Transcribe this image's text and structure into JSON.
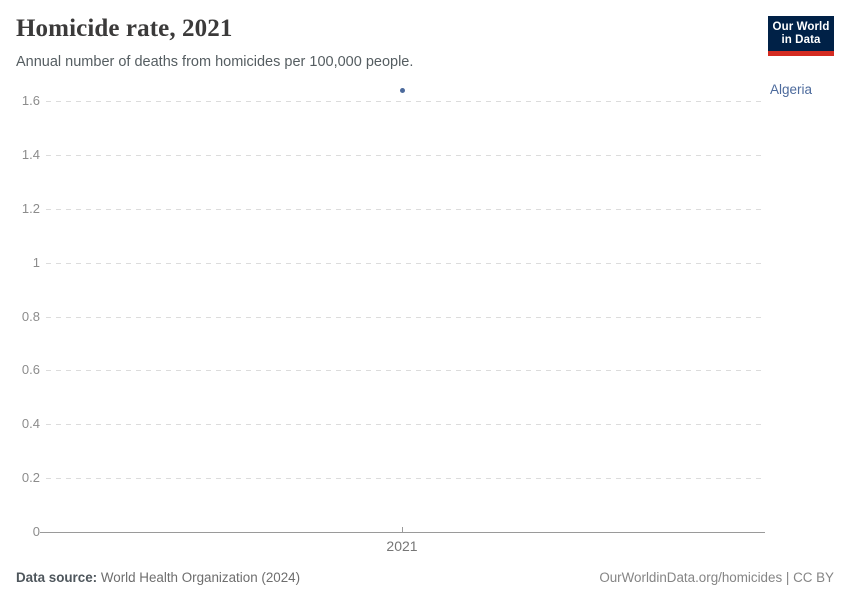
{
  "header": {
    "title": "Homicide rate, 2021",
    "subtitle": "Annual number of deaths from homicides per 100,000 people.",
    "logo": {
      "line1": "Our World",
      "line2": "in Data"
    }
  },
  "chart_data": {
    "type": "scatter",
    "title": "Homicide rate, 2021",
    "subtitle": "Annual number of deaths from homicides per 100,000 people.",
    "series": [
      {
        "name": "Algeria",
        "x": [
          2021
        ],
        "values": [
          1.64
        ]
      }
    ],
    "x_ticks": [
      2021
    ],
    "y_ticks": [
      0,
      0.2,
      0.4,
      0.6,
      0.8,
      1,
      1.2,
      1.4,
      1.6
    ],
    "ylim": [
      0,
      1.6
    ],
    "xlabel": "",
    "ylabel": "",
    "grid": "horizontal-dashed",
    "legend_position": "right-of-point",
    "point_color": "#4c6a9c",
    "entity_label": "Algeria"
  },
  "footer": {
    "source_label": "Data source:",
    "source_value": " World Health Organization (2024)",
    "link_text": "OurWorldinData.org/homicides | CC BY"
  },
  "colors": {
    "accent_point": "#4c6a9c",
    "logo_navy": "#002147",
    "logo_red": "#d42b21",
    "gridline": "#dcdcdc",
    "axis": "#9a9a9a",
    "title_text": "#3b3a3a",
    "subtitle_text": "#555d61",
    "tick_text": "#8c8c8c"
  }
}
